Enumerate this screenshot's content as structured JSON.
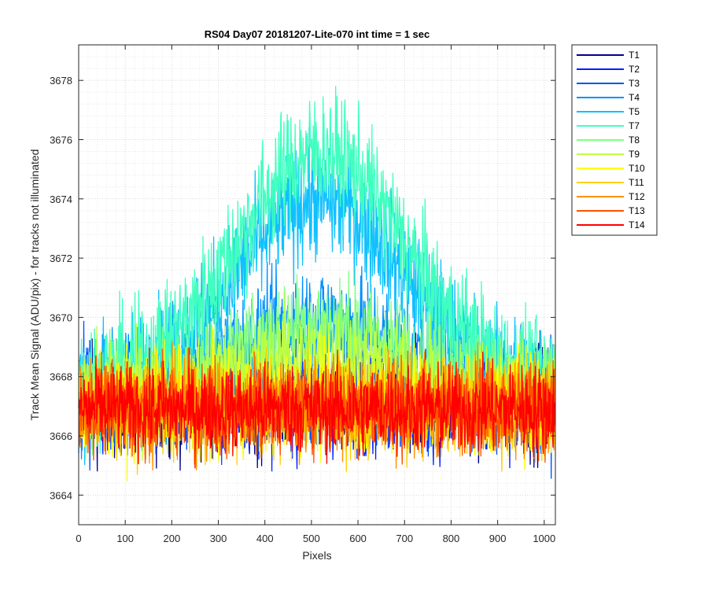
{
  "chart_data": {
    "type": "line",
    "title": "RS04 Day07 20181207-Lite-070 int time = 1 sec",
    "xlabel": "Pixels",
    "ylabel": "Track Mean Signal (ADU/pix) - for tracks not illuminated",
    "xlim": [
      0,
      1024
    ],
    "ylim": [
      3663,
      3679.2
    ],
    "xticks": [
      0,
      100,
      200,
      300,
      400,
      500,
      600,
      700,
      800,
      900,
      1000
    ],
    "yticks": [
      3664,
      3666,
      3668,
      3670,
      3672,
      3674,
      3676,
      3678
    ],
    "grid": "major and minor dotted",
    "legend_position": "outside-right",
    "n_pixels": 1024,
    "series": [
      {
        "name": "T1",
        "color": "#00008f",
        "mode": "flat",
        "center": 3667.2,
        "amp": 0,
        "noise": 2.6
      },
      {
        "name": "T2",
        "color": "#0020ff",
        "mode": "flat",
        "center": 3667.2,
        "amp": 0,
        "noise": 2.6
      },
      {
        "name": "T3",
        "color": "#0050ff",
        "mode": "flat",
        "center": 3667.3,
        "amp": 0,
        "noise": 2.6
      },
      {
        "name": "T4",
        "color": "#0090ff",
        "mode": "bump",
        "center": 3667.3,
        "amp": 2.6,
        "noise": 2.6
      },
      {
        "name": "T5",
        "color": "#10c0ff",
        "mode": "bump",
        "center": 3667.6,
        "amp": 6.4,
        "noise": 2.8
      },
      {
        "name": "T7",
        "color": "#40ffbf",
        "mode": "bump",
        "center": 3667.8,
        "amp": 7.8,
        "noise": 2.8
      },
      {
        "name": "T8",
        "color": "#80ff80",
        "mode": "bump",
        "center": 3667.4,
        "amp": 2.4,
        "noise": 2.4
      },
      {
        "name": "T9",
        "color": "#bfff40",
        "mode": "bump",
        "center": 3667.3,
        "amp": 1.4,
        "noise": 2.4
      },
      {
        "name": "T10",
        "color": "#ffff00",
        "mode": "flat",
        "center": 3667.1,
        "amp": 0,
        "noise": 2.5
      },
      {
        "name": "T11",
        "color": "#ffd000",
        "mode": "flat",
        "center": 3667.0,
        "amp": 0,
        "noise": 2.4
      },
      {
        "name": "T12",
        "color": "#ff9000",
        "mode": "flat",
        "center": 3667.0,
        "amp": 0,
        "noise": 2.3
      },
      {
        "name": "T13",
        "color": "#ff5000",
        "mode": "flat",
        "center": 3667.0,
        "amp": 0,
        "noise": 2.2
      },
      {
        "name": "T14",
        "color": "#ff0000",
        "mode": "flat",
        "center": 3666.9,
        "amp": 0,
        "noise": 2.1
      }
    ]
  }
}
